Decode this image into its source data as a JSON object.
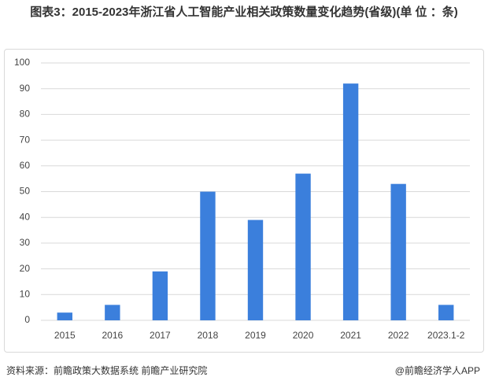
{
  "chart_data": {
    "type": "bar",
    "title": "图表3：2015-2023年浙江省人工智能产业相关政策数量变化趋势(省级)(单 位 ：条)",
    "categories": [
      "2015",
      "2016",
      "2017",
      "2018",
      "2019",
      "2020",
      "2021",
      "2022",
      "2023.1-2"
    ],
    "values": [
      3,
      6,
      19,
      50,
      39,
      57,
      92,
      53,
      6
    ],
    "color": "#3b7fdc",
    "ylim": [
      0,
      100
    ],
    "yticks": [
      0,
      10,
      20,
      30,
      40,
      50,
      60,
      70,
      80,
      90,
      100
    ],
    "grid": true
  },
  "footer": {
    "source": "资料来源：前瞻政策大数据系统 前瞻产业研究院",
    "brand": "@前瞻经济学人APP"
  }
}
